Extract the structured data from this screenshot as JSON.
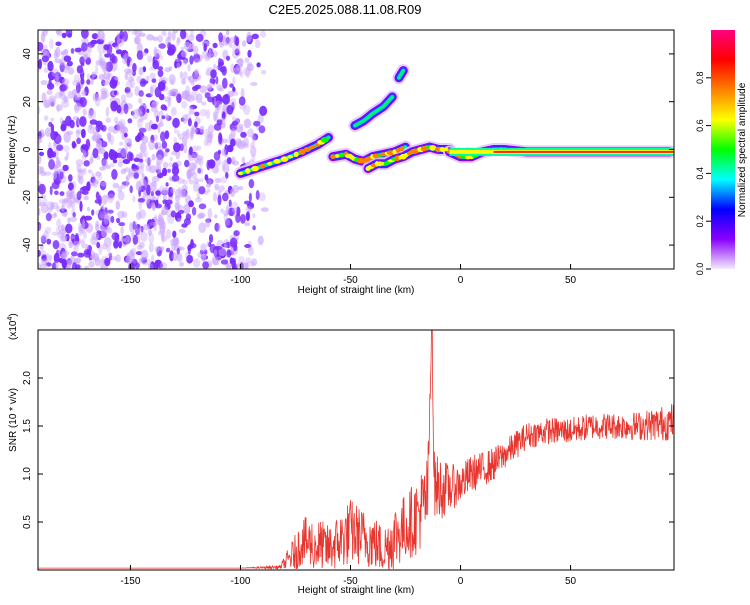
{
  "page": {
    "title": "C2E5.2025.088.11.08.R09"
  },
  "chart_data": [
    {
      "type": "heatmap",
      "name": "spectrogram",
      "xlabel": "Height of straight line (km)",
      "ylabel": "Frequency (Hz)",
      "xlim": [
        -192,
        97
      ],
      "ylim": [
        -50,
        50
      ],
      "xticks": [
        -150,
        -100,
        -50,
        0,
        50
      ],
      "yticks": [
        -40,
        -20,
        0,
        20,
        40
      ],
      "noise_region": {
        "x_from": -192,
        "x_to": -88,
        "density": "high",
        "color": "#7a2cff"
      },
      "ridge": {
        "description": "main spectral ridge, frequency vs height",
        "segments": [
          {
            "x": [
              -100,
              -90,
              -80,
              -72,
              -65,
              -60
            ],
            "y": [
              -10,
              -7,
              -4,
              -1,
              2,
              5
            ]
          },
          {
            "x": [
              -58,
              -52,
              -48,
              -44,
              -40,
              -35,
              -30,
              -25
            ],
            "y": [
              -3,
              -2,
              -4,
              -5,
              -3,
              -2,
              -1,
              1
            ]
          },
          {
            "x": [
              -42,
              -38,
              -34,
              -30,
              -26,
              -22,
              -18,
              -14,
              -10,
              -5
            ],
            "y": [
              -8,
              -6,
              -6,
              -4,
              -3,
              -1,
              0,
              1,
              0,
              0
            ]
          },
          {
            "x": [
              -5,
              0,
              5,
              10,
              15,
              20,
              30,
              40,
              60,
              80,
              95
            ],
            "y": [
              -1,
              -3,
              -3,
              -1,
              0,
              0,
              -1,
              -1,
              -1,
              -1,
              -1
            ]
          },
          {
            "x": [
              -48,
              -44,
              -40,
              -35,
              -31
            ],
            "y": [
              10,
              12,
              15,
              18,
              22
            ]
          },
          {
            "x": [
              -28,
              -26
            ],
            "y": [
              30,
              33
            ]
          }
        ],
        "peak_amplitude_near": {
          "x": [
            -15,
            97
          ],
          "y": -1
        }
      },
      "colorbar": {
        "label": "Normalized spectral amplitude",
        "ticks": [
          0.0,
          0.2,
          0.4,
          0.6,
          0.8
        ],
        "range": [
          0,
          1
        ],
        "colors": [
          "#f4eaff",
          "#8a00ff",
          "#0000ff",
          "#00ffff",
          "#00ff00",
          "#ffff00",
          "#ff8000",
          "#ff0000",
          "#ff0080"
        ]
      }
    },
    {
      "type": "line",
      "name": "snr",
      "xlabel": "Height of straight line (km)",
      "ylabel": "SNR (10 * v/v)",
      "multiplier_label_base": "(x10",
      "multiplier_exponent": "4",
      "multiplier_close": ")",
      "xlim": [
        -192,
        97
      ],
      "ylim": [
        0,
        2.5
      ],
      "xticks": [
        -150,
        -100,
        -50,
        0,
        50
      ],
      "yticks": [
        0.5,
        1.0,
        1.5,
        2.0
      ],
      "color": "#e8352e",
      "envelope": {
        "description": "approximate SNR level (x10^4) vs height; series is noisy around this level",
        "x": [
          -192,
          -100,
          -82,
          -75,
          -72,
          -65,
          -60,
          -55,
          -50,
          -45,
          -40,
          -35,
          -30,
          -25,
          -20,
          -15,
          -13,
          -12,
          -10,
          -5,
          0,
          5,
          10,
          15,
          20,
          25,
          30,
          40,
          50,
          60,
          70,
          80,
          90,
          97
        ],
        "y": [
          0.02,
          0.02,
          0.03,
          0.18,
          0.3,
          0.25,
          0.22,
          0.3,
          0.4,
          0.35,
          0.3,
          0.2,
          0.35,
          0.45,
          0.55,
          0.75,
          2.5,
          0.9,
          0.85,
          0.85,
          0.9,
          1.0,
          1.05,
          1.1,
          1.2,
          1.3,
          1.4,
          1.45,
          1.45,
          1.5,
          1.5,
          1.5,
          1.52,
          1.55
        ],
        "noise": [
          0,
          0,
          0.02,
          0.2,
          0.25,
          0.3,
          0.25,
          0.3,
          0.35,
          0.3,
          0.3,
          0.25,
          0.35,
          0.35,
          0.4,
          0.45,
          0,
          0.35,
          0.35,
          0.25,
          0.2,
          0.2,
          0.18,
          0.18,
          0.15,
          0.15,
          0.14,
          0.14,
          0.14,
          0.14,
          0.14,
          0.15,
          0.18,
          0.2
        ]
      }
    }
  ]
}
